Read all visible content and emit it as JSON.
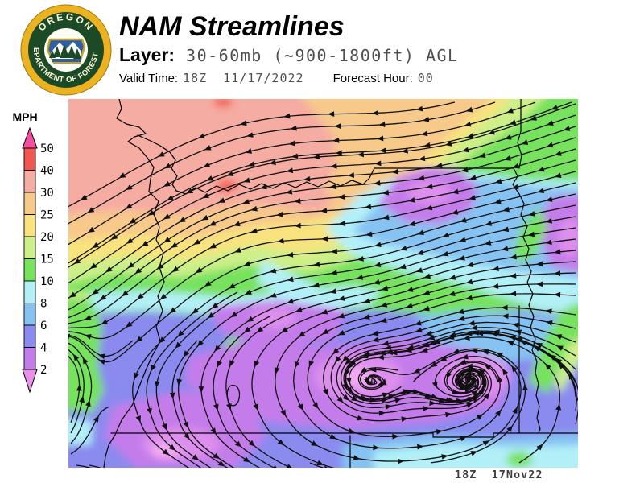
{
  "header": {
    "title": "NAM Streamlines",
    "layer_label": "Layer:",
    "layer_value": "30-60mb (~900-1800ft) AGL",
    "valid_time_label": "Valid Time:",
    "valid_time_value": "18Z  11/17/2022",
    "forecast_hour_label": "Forecast Hour:",
    "forecast_hour_value": "00"
  },
  "logo": {
    "top_text": "OREGON",
    "bottom_text": "DEPARTMENT OF FORESTRY",
    "ring_color": "#EDB21F",
    "disc_color": "#1D4A26",
    "text_color": "#FBF3D8"
  },
  "legend": {
    "title": "MPH",
    "over_color": "#F0509E",
    "under_color": "#E98FE9",
    "bottom_tick": 2,
    "segments": [
      {
        "tick": 50,
        "range": "40-50",
        "color": "#F3564E"
      },
      {
        "tick": 40,
        "range": "30-40",
        "color": "#F5ACA2"
      },
      {
        "tick": 30,
        "range": "25-30",
        "color": "#F7C98B"
      },
      {
        "tick": 25,
        "range": "20-25",
        "color": "#F8E37E"
      },
      {
        "tick": 20,
        "range": "15-20",
        "color": "#CDEF8A"
      },
      {
        "tick": 15,
        "range": "10-15",
        "color": "#77E25D"
      },
      {
        "tick": 10,
        "range": "8-10",
        "color": "#B2F0F8"
      },
      {
        "tick": 8,
        "range": "6-8",
        "color": "#86C2F2"
      },
      {
        "tick": 6,
        "range": "4-6",
        "color": "#8A8AEF"
      },
      {
        "tick": 4,
        "range": "2-4",
        "color": "#C47CEA"
      }
    ]
  },
  "map": {
    "timestamp": "18Z  17Nov22",
    "stream_color": "#111111",
    "boundary_color": "#000000"
  }
}
